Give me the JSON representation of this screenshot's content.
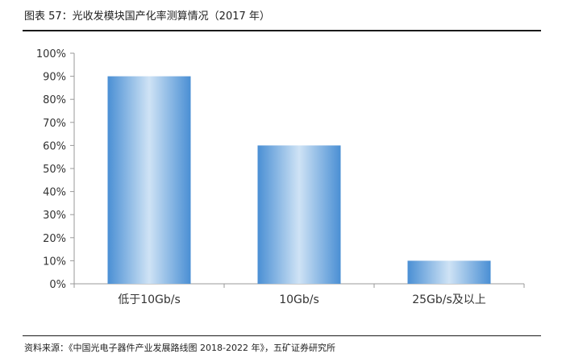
{
  "figure": {
    "title": "图表 57：光收发模块国产化率测算情况（2017 年）",
    "source": "资料来源：《中国光电子器件产业发展路线图 2018-2022 年》，五矿证券研究所"
  },
  "chart_data": {
    "type": "bar",
    "categories": [
      "低于10Gb/s",
      "10Gb/s",
      "25Gb/s及以上"
    ],
    "values": [
      90,
      60,
      10
    ],
    "ylim": [
      0,
      100
    ],
    "yticks": [
      0,
      10,
      20,
      30,
      40,
      50,
      60,
      70,
      80,
      90,
      100
    ],
    "ytick_labels": [
      "0%",
      "10%",
      "20%",
      "30%",
      "40%",
      "50%",
      "60%",
      "70%",
      "80%",
      "90%",
      "100%"
    ],
    "grid": false,
    "legend": "none",
    "bar_color_edge": "#4a8fd4",
    "bar_color_center": "#cfe3f5",
    "axis_color": "#999999"
  }
}
